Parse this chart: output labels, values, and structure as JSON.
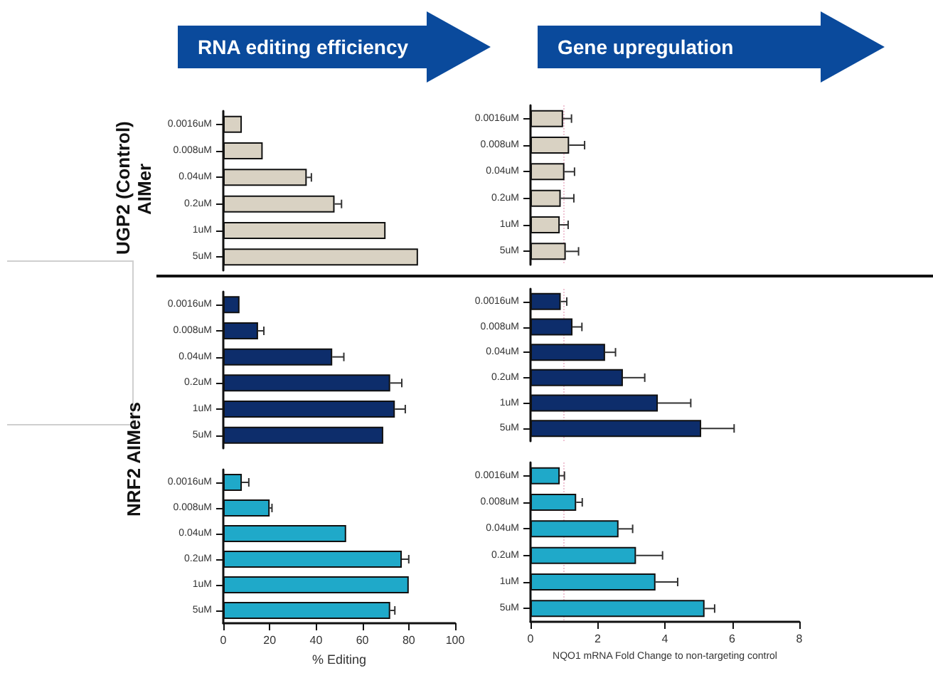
{
  "chart_data": [
    {
      "type": "bar",
      "orientation": "horizontal",
      "title": "RNA editing efficiency",
      "ylabel": "UGP2 (Control) AIMer",
      "categories": [
        "0.0016uM",
        "0.008uM",
        "0.04uM",
        "0.2uM",
        "1uM",
        "5uM"
      ],
      "values": [
        8,
        17,
        36,
        48,
        70,
        84
      ],
      "errors": [
        null,
        null,
        2,
        3,
        null,
        null
      ],
      "color": "#d9d2c3",
      "xlim": [
        0,
        100
      ],
      "tick_labels": "y"
    },
    {
      "type": "bar",
      "orientation": "horizontal",
      "title": "Gene upregulation",
      "categories": [
        "0.0016uM",
        "0.008uM",
        "0.04uM",
        "0.2uM",
        "1uM",
        "5uM"
      ],
      "values": [
        0.97,
        1.15,
        1.01,
        0.9,
        0.87,
        1.05
      ],
      "errors": [
        0.25,
        0.46,
        0.3,
        0.39,
        0.25,
        0.38
      ],
      "color": "#d9d2c3",
      "xlim": [
        0,
        8
      ],
      "tick_labels": "y",
      "ref_lines": [
        {
          "axis": "x",
          "value": 1,
          "color": "#f0c4d4",
          "line_style": "dotted"
        }
      ]
    },
    {
      "type": "bar",
      "orientation": "horizontal",
      "ylabel": "NRF2 AIMers",
      "categories": [
        "0.0016uM",
        "0.008uM",
        "0.04uM",
        "0.2uM",
        "1uM",
        "5uM"
      ],
      "values": [
        7,
        15,
        47,
        72,
        74,
        69
      ],
      "errors": [
        null,
        2.5,
        5,
        5,
        4.5,
        null
      ],
      "color": "#0d2d6b",
      "xlim": [
        0,
        100
      ],
      "tick_labels": "y"
    },
    {
      "type": "bar",
      "orientation": "horizontal",
      "categories": [
        "0.0016uM",
        "0.008uM",
        "0.04uM",
        "0.2uM",
        "1uM",
        "5uM"
      ],
      "values": [
        0.9,
        1.25,
        2.22,
        2.75,
        3.79,
        5.08
      ],
      "errors": [
        0.18,
        0.28,
        0.31,
        0.65,
        0.98,
        0.98
      ],
      "color": "#0d2d6b",
      "xlim": [
        0,
        8
      ],
      "tick_labels": "y",
      "ref_lines": [
        {
          "axis": "x",
          "value": 1,
          "color": "#f0c4d4",
          "line_style": "dotted"
        }
      ]
    },
    {
      "type": "bar",
      "orientation": "horizontal",
      "xlabel": "% Editing",
      "categories": [
        "0.0016uM",
        "0.008uM",
        "0.04uM",
        "0.2uM",
        "1uM",
        "5uM"
      ],
      "values": [
        8,
        20,
        53,
        77,
        80,
        72
      ],
      "errors": [
        3,
        1,
        null,
        3,
        null,
        2
      ],
      "color": "#1fa9c9",
      "xlim": [
        0,
        100
      ],
      "xticks": [
        0,
        20,
        40,
        60,
        80,
        100
      ]
    },
    {
      "type": "bar",
      "orientation": "horizontal",
      "xlabel": "NQO1 mRNA Fold Change to non-targeting control",
      "categories": [
        "0.0016uM",
        "0.008uM",
        "0.04uM",
        "0.2uM",
        "1uM",
        "5uM"
      ],
      "values": [
        0.87,
        1.36,
        2.62,
        3.14,
        3.72,
        5.18
      ],
      "errors": [
        0.14,
        0.18,
        0.42,
        0.79,
        0.66,
        0.3
      ],
      "color": "#1fa9c9",
      "xlim": [
        0,
        8
      ],
      "xticks": [
        0,
        2,
        4,
        6,
        8
      ],
      "ref_lines": [
        {
          "axis": "x",
          "value": 1,
          "color": "#f0c4d4",
          "line_style": "dotted"
        }
      ]
    }
  ]
}
